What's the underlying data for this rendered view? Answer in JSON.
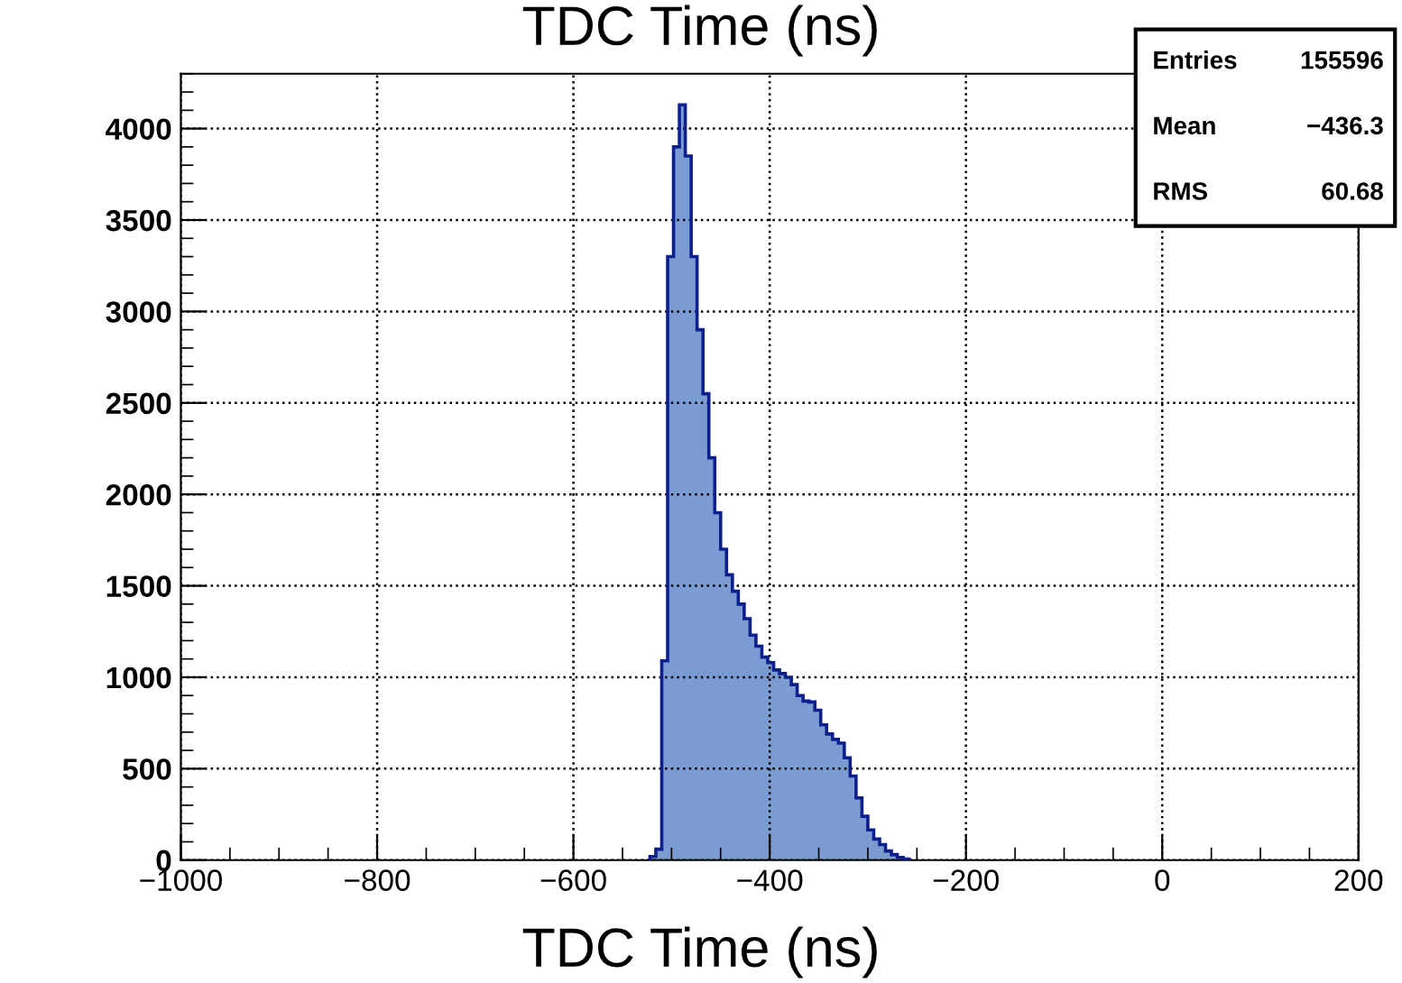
{
  "chart_data": {
    "type": "histogram",
    "title": "TDC Time (ns)",
    "xlabel": "TDC Time (ns)",
    "bins": [
      -522,
      -516,
      -510,
      -504,
      -498,
      -492,
      -486,
      -480,
      -474,
      -468,
      -462,
      -456,
      -450,
      -444,
      -438,
      -432,
      -426,
      -420,
      -414,
      -408,
      -402,
      -396,
      -390,
      -384,
      -378,
      -372,
      -366,
      -360,
      -354,
      -348,
      -342,
      -336,
      -330,
      -324,
      -318,
      -312,
      -306,
      -300,
      -294,
      -288,
      -282,
      -276,
      -270,
      -264,
      -258
    ],
    "values": [
      20,
      60,
      1090,
      3300,
      3900,
      4130,
      3850,
      3300,
      2900,
      2550,
      2200,
      1900,
      1700,
      1560,
      1470,
      1400,
      1320,
      1230,
      1170,
      1110,
      1080,
      1040,
      1020,
      1000,
      960,
      900,
      870,
      865,
      820,
      740,
      690,
      660,
      640,
      560,
      460,
      340,
      240,
      165,
      115,
      85,
      50,
      30,
      15,
      6
    ],
    "color": "#7b9bd3",
    "xlim": [
      -1000,
      200
    ],
    "ylim": [
      0,
      4300
    ],
    "xticks": [
      {
        "value": -1000,
        "label": "−1000"
      },
      {
        "value": -800,
        "label": "−800"
      },
      {
        "value": -600,
        "label": "−600"
      },
      {
        "value": -400,
        "label": "−400"
      },
      {
        "value": -200,
        "label": "−200"
      },
      0,
      200
    ],
    "yticks": [
      0,
      500,
      1000,
      1500,
      2000,
      2500,
      3000,
      3500,
      4000
    ],
    "grid": true,
    "annotations": [
      "Entries 155596",
      "Mean −436.3",
      "RMS 60.68"
    ]
  }
}
